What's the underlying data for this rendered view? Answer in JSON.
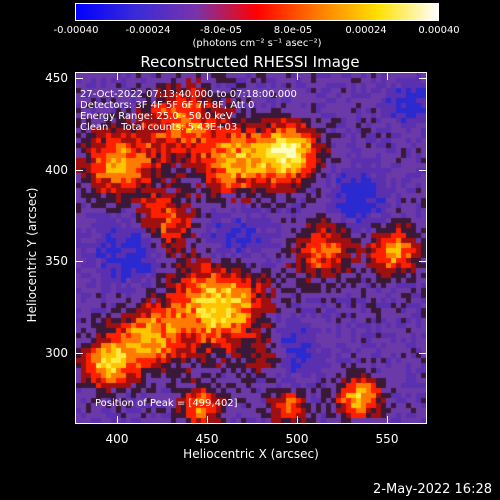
{
  "colorbar": {
    "ticks": [
      "-0.00040",
      "-0.00024",
      "-8.0e-05",
      "8.0e-05",
      "0.00024",
      "0.00040"
    ],
    "units": "(photons cm⁻² s⁻¹ asec⁻²)",
    "gradient_stops": [
      "#0000ff",
      "#3b2bd8",
      "#7a33a8",
      "#ff0000",
      "#ff7a00",
      "#ffe000",
      "#ffffff"
    ]
  },
  "title": "Reconstructed RHESSI Image",
  "annotations": {
    "line1": "27-Oct-2022 07:13:40.000 to 07:18:00.000",
    "line2": "Detectors: 3F 4F 5F 6F 7F 8F, Att 0",
    "line3": "Energy Range: 25.0 - 50.0 keV",
    "line4": "Clean    Total counts: 5.43E+03",
    "peak": "Position of Peak = [499,402]"
  },
  "axes": {
    "xlabel": "Heliocentric X (arcsec)",
    "ylabel": "Heliocentric Y (arcsec)",
    "xticks": [
      "400",
      "450",
      "500",
      "550"
    ],
    "yticks": [
      "450",
      "400",
      "350",
      "300"
    ],
    "xlim": [
      378,
      572
    ],
    "ylim": [
      257,
      452
    ]
  },
  "footer": {
    "date": "2-May-2022 16:28"
  }
}
